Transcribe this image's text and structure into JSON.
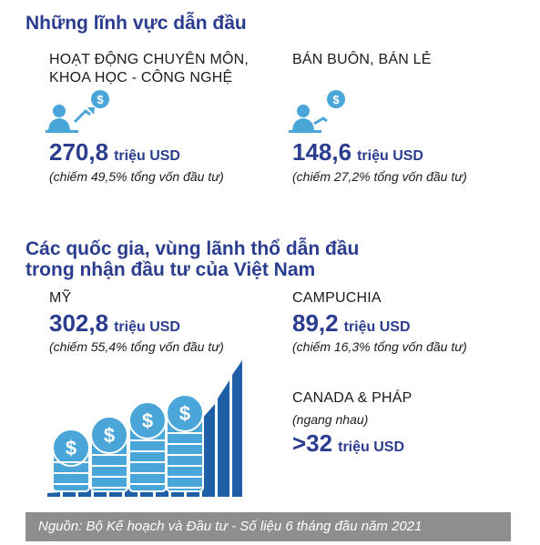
{
  "sections": {
    "fields_title": "Những lĩnh vực dẫn đầu",
    "countries_title_line1": "Các quốc gia, vùng lãnh thổ dẫn đầu",
    "countries_title_line2": "trong nhận đầu tư của Việt Nam"
  },
  "fields": [
    {
      "name_line1": "HOẠT ĐỘNG CHUYÊN MÔN,",
      "name_line2": "KHOA HỌC - CÔNG NGHỆ",
      "value": "270,8",
      "unit": "triệu USD",
      "note": "(chiếm 49,5% tổng vốn đầu tư)",
      "icon": "businessman-dollar-icon"
    },
    {
      "name_line1": "BÁN BUÔN, BÁN LẺ",
      "value": "148,6",
      "unit": "triệu USD",
      "note": "(chiếm 27,2% tổng vốn đầu tư)",
      "icon": "businessman-dollar-icon"
    }
  ],
  "countries": [
    {
      "name": "MỸ",
      "value": "302,8",
      "unit": "triệu USD",
      "note": "(chiếm 55,4% tổng vốn đầu tư)"
    },
    {
      "name": "CAMPUCHIA",
      "value": "89,2",
      "unit": "triệu USD",
      "note": "(chiếm 16,3% tổng vốn đầu tư)"
    },
    {
      "name": "CANADA & PHÁP",
      "value": ">32",
      "unit": "triệu USD",
      "note": "(ngang nhau)"
    }
  ],
  "illustration": {
    "icon": "coin-stacks-growth-icon"
  },
  "colors": {
    "primary": "#2b3d8f",
    "coin": "#4aa6d8",
    "bars": "#1e5fa8",
    "footer_bg": "#8e8e8e"
  },
  "footer": {
    "source": "Nguồn: Bộ Kế hoạch và Đầu tư - Số liệu 6 tháng đầu năm 2021"
  }
}
